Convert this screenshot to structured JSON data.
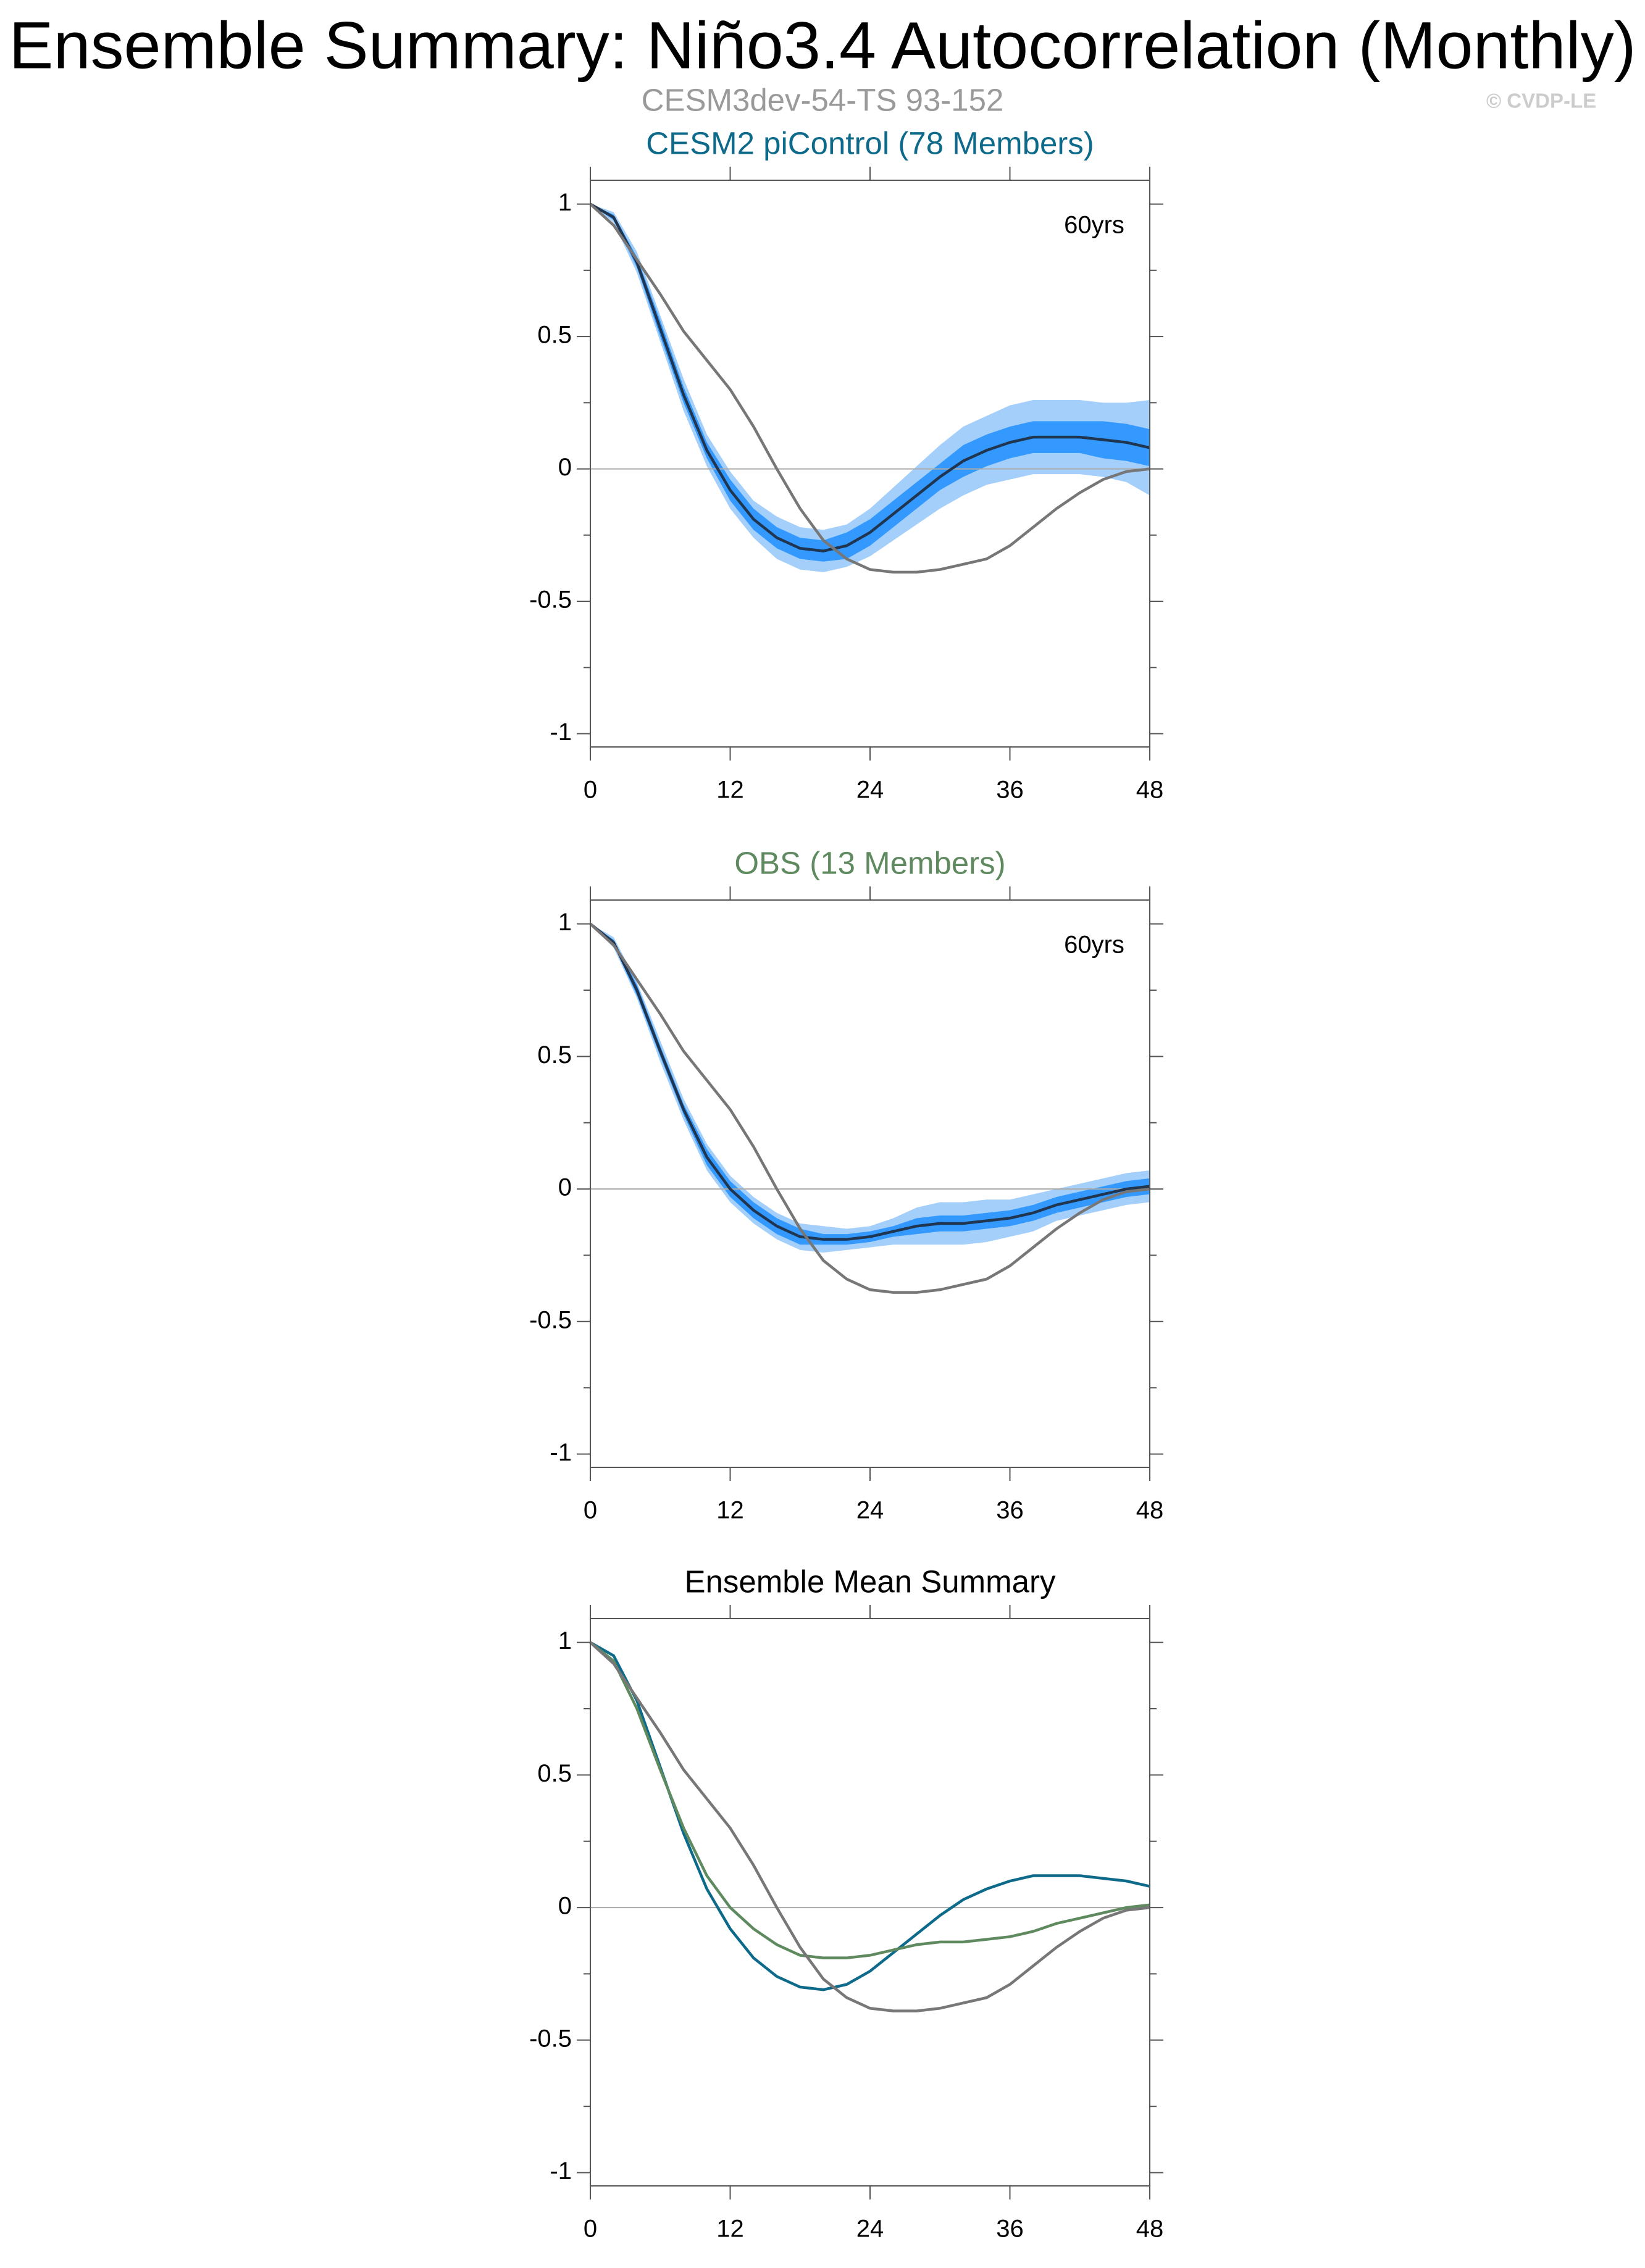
{
  "header": {
    "title": "Ensemble Summary: Niño3.4 Autocorrelation (Monthly)",
    "subtitle": "CESM3dev-54-TS 93-152",
    "credit": "© CVDP-LE"
  },
  "chart_data": [
    {
      "type": "line",
      "title": "CESM2 piControl (78 Members)",
      "title_color": "#0e6a8a",
      "annotation": "60yrs",
      "x": [
        0,
        2,
        4,
        6,
        8,
        10,
        12,
        14,
        16,
        18,
        20,
        22,
        24,
        26,
        28,
        30,
        32,
        34,
        36,
        38,
        40,
        42,
        44,
        46,
        48
      ],
      "xlim": [
        0,
        48
      ],
      "xticks": [
        0,
        12,
        24,
        36,
        48
      ],
      "ylim": [
        -1.05,
        1.09
      ],
      "yticks": [
        -1,
        -0.5,
        0,
        0.5,
        1
      ],
      "yminorticks": [
        -0.75,
        -0.25,
        0.25,
        0.75
      ],
      "yref": 0,
      "bands": [
        {
          "color": "#a3cffa",
          "lower": [
            1,
            0.93,
            0.74,
            0.48,
            0.22,
            0.01,
            -0.15,
            -0.26,
            -0.34,
            -0.38,
            -0.39,
            -0.37,
            -0.33,
            -0.27,
            -0.21,
            -0.15,
            -0.1,
            -0.06,
            -0.04,
            -0.02,
            -0.02,
            -0.02,
            -0.03,
            -0.05,
            -0.1
          ],
          "upper": [
            1,
            0.97,
            0.82,
            0.58,
            0.34,
            0.13,
            -0.01,
            -0.12,
            -0.18,
            -0.22,
            -0.23,
            -0.21,
            -0.15,
            -0.07,
            0.01,
            0.09,
            0.16,
            0.2,
            0.24,
            0.26,
            0.26,
            0.26,
            0.25,
            0.25,
            0.26
          ]
        },
        {
          "color": "#3399ff",
          "lower": [
            1,
            0.94,
            0.76,
            0.5,
            0.25,
            0.04,
            -0.12,
            -0.23,
            -0.3,
            -0.34,
            -0.35,
            -0.34,
            -0.29,
            -0.22,
            -0.15,
            -0.08,
            -0.03,
            0.01,
            0.04,
            0.06,
            0.06,
            0.06,
            0.04,
            0.03,
            0.01
          ],
          "upper": [
            1,
            0.96,
            0.8,
            0.56,
            0.31,
            0.1,
            -0.04,
            -0.15,
            -0.22,
            -0.26,
            -0.27,
            -0.24,
            -0.19,
            -0.12,
            -0.05,
            0.02,
            0.09,
            0.13,
            0.16,
            0.18,
            0.18,
            0.18,
            0.18,
            0.17,
            0.15
          ]
        }
      ],
      "series": [
        {
          "color": "#1f3550",
          "values": [
            1,
            0.95,
            0.78,
            0.53,
            0.28,
            0.07,
            -0.08,
            -0.19,
            -0.26,
            -0.3,
            -0.31,
            -0.29,
            -0.24,
            -0.17,
            -0.1,
            -0.03,
            0.03,
            0.07,
            0.1,
            0.12,
            0.12,
            0.12,
            0.11,
            0.1,
            0.08
          ]
        },
        {
          "color": "#777777",
          "values": [
            1,
            0.92,
            0.79,
            0.66,
            0.52,
            0.41,
            0.3,
            0.16,
            0.0,
            -0.15,
            -0.27,
            -0.34,
            -0.38,
            -0.39,
            -0.39,
            -0.38,
            -0.36,
            -0.34,
            -0.29,
            -0.22,
            -0.15,
            -0.09,
            -0.04,
            -0.01,
            0.0
          ]
        }
      ]
    },
    {
      "type": "line",
      "title": "OBS (13 Members)",
      "title_color": "#5f8a5f",
      "annotation": "60yrs",
      "x": [
        0,
        2,
        4,
        6,
        8,
        10,
        12,
        14,
        16,
        18,
        20,
        22,
        24,
        26,
        28,
        30,
        32,
        34,
        36,
        38,
        40,
        42,
        44,
        46,
        48
      ],
      "xlim": [
        0,
        48
      ],
      "xticks": [
        0,
        12,
        24,
        36,
        48
      ],
      "ylim": [
        -1.05,
        1.09
      ],
      "yticks": [
        -1,
        -0.5,
        0,
        0.5,
        1
      ],
      "yminorticks": [
        -0.75,
        -0.25,
        0.25,
        0.75
      ],
      "yref": 0,
      "bands": [
        {
          "color": "#a3cffa",
          "lower": [
            1,
            0.91,
            0.72,
            0.48,
            0.26,
            0.07,
            -0.05,
            -0.13,
            -0.19,
            -0.23,
            -0.24,
            -0.23,
            -0.22,
            -0.21,
            -0.21,
            -0.21,
            -0.21,
            -0.2,
            -0.18,
            -0.16,
            -0.12,
            -0.1,
            -0.08,
            -0.06,
            -0.05
          ],
          "upper": [
            1,
            0.95,
            0.78,
            0.56,
            0.34,
            0.17,
            0.05,
            -0.03,
            -0.09,
            -0.13,
            -0.14,
            -0.15,
            -0.14,
            -0.11,
            -0.07,
            -0.05,
            -0.05,
            -0.04,
            -0.04,
            -0.02,
            0.0,
            0.02,
            0.04,
            0.06,
            0.07
          ]
        },
        {
          "color": "#3399ff",
          "lower": [
            1,
            0.92,
            0.73,
            0.5,
            0.28,
            0.09,
            -0.03,
            -0.11,
            -0.17,
            -0.21,
            -0.21,
            -0.21,
            -0.2,
            -0.18,
            -0.17,
            -0.16,
            -0.16,
            -0.15,
            -0.14,
            -0.12,
            -0.09,
            -0.07,
            -0.05,
            -0.03,
            -0.02
          ],
          "upper": [
            1,
            0.94,
            0.77,
            0.54,
            0.32,
            0.15,
            0.03,
            -0.05,
            -0.11,
            -0.15,
            -0.17,
            -0.17,
            -0.16,
            -0.14,
            -0.11,
            -0.1,
            -0.1,
            -0.09,
            -0.08,
            -0.06,
            -0.03,
            -0.01,
            0.01,
            0.03,
            0.04
          ]
        }
      ],
      "series": [
        {
          "color": "#1f3550",
          "values": [
            1,
            0.93,
            0.75,
            0.52,
            0.3,
            0.12,
            0.0,
            -0.08,
            -0.14,
            -0.18,
            -0.19,
            -0.19,
            -0.18,
            -0.16,
            -0.14,
            -0.13,
            -0.13,
            -0.12,
            -0.11,
            -0.09,
            -0.06,
            -0.04,
            -0.02,
            0.0,
            0.01
          ]
        },
        {
          "color": "#777777",
          "values": [
            1,
            0.92,
            0.79,
            0.66,
            0.52,
            0.41,
            0.3,
            0.16,
            0.0,
            -0.15,
            -0.27,
            -0.34,
            -0.38,
            -0.39,
            -0.39,
            -0.38,
            -0.36,
            -0.34,
            -0.29,
            -0.22,
            -0.15,
            -0.09,
            -0.04,
            -0.01,
            0.0
          ]
        }
      ]
    },
    {
      "type": "line",
      "title": "Ensemble Mean Summary",
      "title_color": "#000000",
      "x": [
        0,
        2,
        4,
        6,
        8,
        10,
        12,
        14,
        16,
        18,
        20,
        22,
        24,
        26,
        28,
        30,
        32,
        34,
        36,
        38,
        40,
        42,
        44,
        46,
        48
      ],
      "xlim": [
        0,
        48
      ],
      "xticks": [
        0,
        12,
        24,
        36,
        48
      ],
      "ylim": [
        -1.05,
        1.09
      ],
      "yticks": [
        -1,
        -0.5,
        0,
        0.5,
        1
      ],
      "yminorticks": [
        -0.75,
        -0.25,
        0.25,
        0.75
      ],
      "yref": 0,
      "series": [
        {
          "color": "#0e6a8a",
          "values": [
            1,
            0.95,
            0.78,
            0.53,
            0.28,
            0.07,
            -0.08,
            -0.19,
            -0.26,
            -0.3,
            -0.31,
            -0.29,
            -0.24,
            -0.17,
            -0.1,
            -0.03,
            0.03,
            0.07,
            0.1,
            0.12,
            0.12,
            0.12,
            0.11,
            0.1,
            0.08
          ]
        },
        {
          "color": "#5f8a5f",
          "values": [
            1,
            0.93,
            0.75,
            0.52,
            0.3,
            0.12,
            0.0,
            -0.08,
            -0.14,
            -0.18,
            -0.19,
            -0.19,
            -0.18,
            -0.16,
            -0.14,
            -0.13,
            -0.13,
            -0.12,
            -0.11,
            -0.09,
            -0.06,
            -0.04,
            -0.02,
            0.0,
            0.01
          ]
        },
        {
          "color": "#777777",
          "values": [
            1,
            0.92,
            0.79,
            0.66,
            0.52,
            0.41,
            0.3,
            0.16,
            0.0,
            -0.15,
            -0.27,
            -0.34,
            -0.38,
            -0.39,
            -0.39,
            -0.38,
            -0.36,
            -0.34,
            -0.29,
            -0.22,
            -0.15,
            -0.09,
            -0.04,
            -0.01,
            0.0
          ]
        }
      ]
    }
  ]
}
